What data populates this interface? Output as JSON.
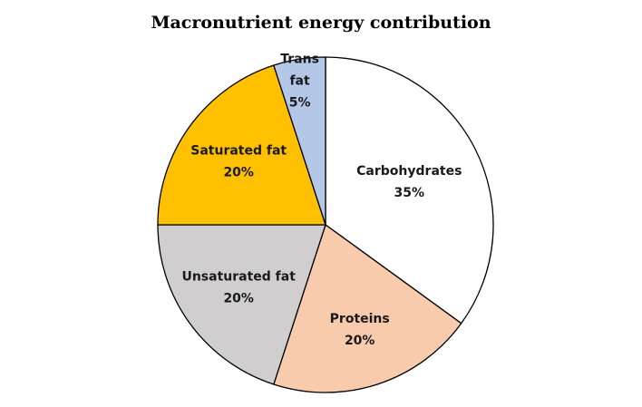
{
  "chart_data": {
    "type": "pie",
    "title": "Macronutrient energy contribution",
    "slices": [
      {
        "label_lines": [
          "Carbohydrates",
          "35%"
        ],
        "name": "Carbohydrates",
        "value": 35,
        "color": "#ffffff"
      },
      {
        "label_lines": [
          "Proteins",
          "20%"
        ],
        "name": "Proteins",
        "value": 20,
        "color": "#f8cbad"
      },
      {
        "label_lines": [
          "Unsaturated fat",
          "20%"
        ],
        "name": "Unsaturated fat",
        "value": 20,
        "color": "#d0cece"
      },
      {
        "label_lines": [
          "Saturated fat",
          "20%"
        ],
        "name": "Saturated fat",
        "value": 20,
        "color": "#ffc000"
      },
      {
        "label_lines": [
          "Trans",
          "fat",
          "5%"
        ],
        "name": "Trans fat",
        "value": 5,
        "color": "#b4c7e7"
      }
    ],
    "legend": "none",
    "start": "12 o'clock",
    "direction": "clockwise"
  }
}
